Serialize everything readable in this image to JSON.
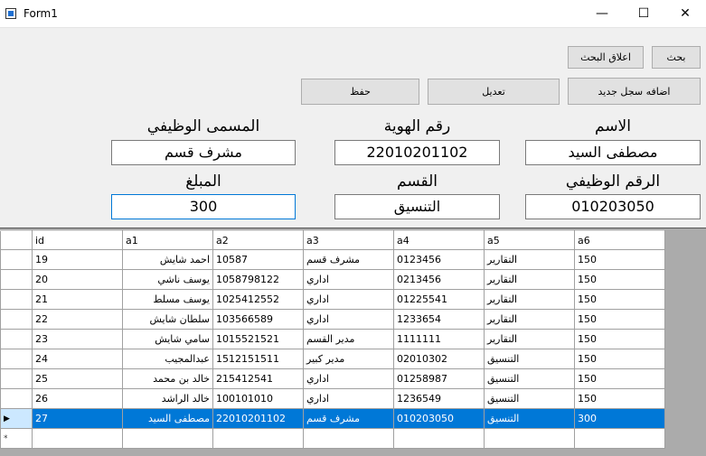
{
  "window": {
    "title": "Form1",
    "minimize": "—",
    "maximize": "☐",
    "close": "✕"
  },
  "buttons": {
    "search": "بحث",
    "close_search": "اعلاق البحث",
    "add_new": "اضافه سجل جديد",
    "edit": "تعديل",
    "save": "حفظ"
  },
  "fields": {
    "name": {
      "label": "الاسم",
      "value": "مصطفى السيد"
    },
    "id_number": {
      "label": "رقم الهوية",
      "value": "22010201102"
    },
    "job_title": {
      "label": "المسمى الوظيفي",
      "value": "مشرف قسم"
    },
    "employee_number": {
      "label": "الرقم الوظيفي",
      "value": "010203050"
    },
    "department": {
      "label": "القسم",
      "value": "التنسيق"
    },
    "amount": {
      "label": "المبلغ",
      "value": "300"
    }
  },
  "grid": {
    "columns": [
      "id",
      "a1",
      "a2",
      "a3",
      "a4",
      "a5",
      "a6"
    ],
    "rows": [
      [
        "19",
        "احمد شايش",
        "10587",
        "مشرف قسم",
        "0123456",
        "التقارير",
        "150"
      ],
      [
        "20",
        "يوسف ناشي",
        "1058798122",
        "اداري",
        "0213456",
        "التقارير",
        "150"
      ],
      [
        "21",
        "يوسف مسلط",
        "1025412552",
        "اداري",
        "01225541",
        "التقارير",
        "150"
      ],
      [
        "22",
        "سلطان شايش",
        "103566589",
        "اداري",
        "1233654",
        "التقارير",
        "150"
      ],
      [
        "23",
        "سامي شايش",
        "1015521521",
        "مدير القسم",
        "1111111",
        "التقارير",
        "150"
      ],
      [
        "24",
        "عبدالمجيب",
        "1512151511",
        "مدير كبير",
        "02010302",
        "التنسيق",
        "150"
      ],
      [
        "25",
        "خالد بن محمد",
        "215412541",
        "اداري",
        "01258987",
        "التنسيق",
        "150"
      ],
      [
        "26",
        "خالد الراشد",
        "100101010",
        "اداري",
        "1236549",
        "التنسيق",
        "150"
      ],
      [
        "27",
        "مصطفى السيد",
        "22010201102",
        "مشرف قسم",
        "010203050",
        "التنسيق",
        "300"
      ]
    ],
    "selected_row": 8,
    "current_row_marker": "▶",
    "new_row_marker": "*"
  },
  "colors": {
    "selection": "#0078d7",
    "focus_border": "#0078d7"
  }
}
